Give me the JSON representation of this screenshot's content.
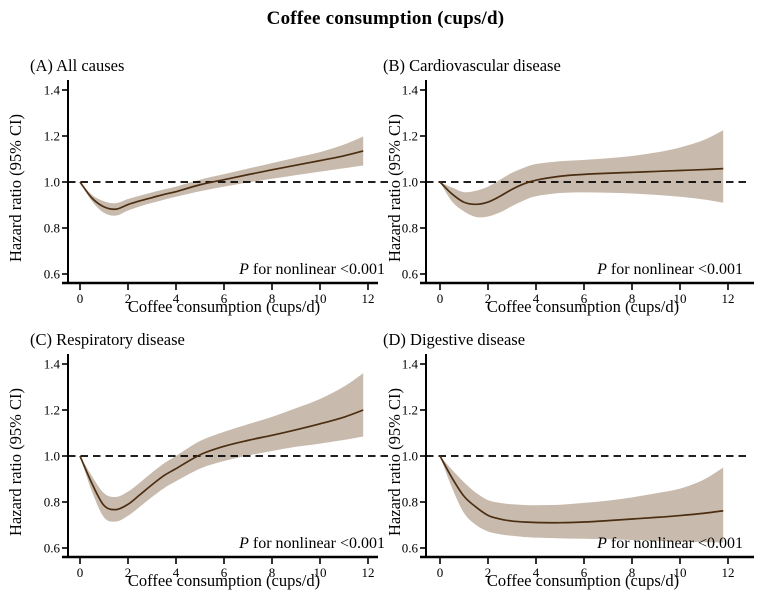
{
  "title": "Coffee consumption (cups/d)",
  "colors": {
    "band": "#c8bbad",
    "curve": "#4b2d12",
    "axis": "#000000",
    "reference_line": "#000000",
    "background": "#ffffff"
  },
  "p_note": {
    "italic": "P",
    "rest": " for nonlinear <0.001"
  },
  "chart_data": [
    {
      "type": "line",
      "label": "(A) All causes",
      "xlabel": "Coffee consumption (cups/d)",
      "ylabel": "Hazard ratio (95% CI)",
      "xlim": [
        0,
        12
      ],
      "ylim": [
        0.6,
        1.4
      ],
      "x_tick_labels": [
        "0",
        "2",
        "4",
        "6",
        "8",
        "10",
        "12"
      ],
      "x_tick_values": [
        0,
        2,
        4,
        6,
        8,
        10,
        12
      ],
      "y_tick_labels": [
        "0.6",
        "0.8",
        "1.0",
        "1.2",
        "1.4"
      ],
      "y_tick_values": [
        0.6,
        0.8,
        1.0,
        1.2,
        1.4
      ],
      "reference_line": 1.0,
      "p_text": "P for nonlinear <0.001",
      "x": [
        0,
        0.5,
        1,
        1.5,
        2,
        2.5,
        3,
        3.5,
        4,
        5,
        6,
        7,
        8,
        9,
        10,
        11,
        11.8
      ],
      "hazard_ratio": [
        1.0,
        0.93,
        0.892,
        0.882,
        0.902,
        0.918,
        0.932,
        0.946,
        0.958,
        0.988,
        1.01,
        1.032,
        1.053,
        1.073,
        1.093,
        1.114,
        1.135
      ],
      "ci_lower": [
        1.0,
        0.916,
        0.866,
        0.854,
        0.876,
        0.894,
        0.909,
        0.923,
        0.936,
        0.96,
        0.98,
        0.998,
        1.014,
        1.03,
        1.045,
        1.06,
        1.072
      ],
      "ci_upper": [
        1.0,
        0.944,
        0.916,
        0.908,
        0.926,
        0.941,
        0.955,
        0.968,
        0.98,
        1.01,
        1.034,
        1.058,
        1.082,
        1.106,
        1.13,
        1.163,
        1.198
      ]
    },
    {
      "type": "line",
      "label": "(B) Cardiovascular disease",
      "xlabel": "Coffee consumption (cups/d)",
      "ylabel": "Hazard ratio (95% CI)",
      "xlim": [
        0,
        12
      ],
      "ylim": [
        0.6,
        1.4
      ],
      "x_tick_labels": [
        "0",
        "2",
        "4",
        "6",
        "8",
        "10",
        "12"
      ],
      "x_tick_values": [
        0,
        2,
        4,
        6,
        8,
        10,
        12
      ],
      "y_tick_labels": [
        "0.6",
        "0.8",
        "1.0",
        "1.2",
        "1.4"
      ],
      "y_tick_values": [
        0.6,
        0.8,
        1.0,
        1.2,
        1.4
      ],
      "reference_line": 1.0,
      "p_text": "P for nonlinear <0.001",
      "x": [
        0,
        0.5,
        1,
        1.5,
        2,
        2.5,
        3,
        3.5,
        4,
        5,
        6,
        7,
        8,
        9,
        10,
        11,
        11.8
      ],
      "hazard_ratio": [
        1.0,
        0.948,
        0.912,
        0.903,
        0.913,
        0.938,
        0.968,
        0.992,
        1.008,
        1.025,
        1.033,
        1.038,
        1.042,
        1.046,
        1.05,
        1.054,
        1.058
      ],
      "ci_lower": [
        1.0,
        0.915,
        0.872,
        0.848,
        0.85,
        0.868,
        0.895,
        0.92,
        0.938,
        0.952,
        0.955,
        0.953,
        0.95,
        0.944,
        0.936,
        0.924,
        0.91
      ],
      "ci_upper": [
        1.0,
        0.976,
        0.956,
        0.962,
        0.98,
        1.01,
        1.04,
        1.062,
        1.078,
        1.09,
        1.096,
        1.103,
        1.113,
        1.128,
        1.15,
        1.183,
        1.225
      ]
    },
    {
      "type": "line",
      "label": "(C) Respiratory disease",
      "xlabel": "Coffee consumption (cups/d)",
      "ylabel": "Hazard ratio (95% CI)",
      "xlim": [
        0,
        12
      ],
      "ylim": [
        0.6,
        1.4
      ],
      "x_tick_labels": [
        "0",
        "2",
        "4",
        "6",
        "8",
        "10",
        "12"
      ],
      "x_tick_values": [
        0,
        2,
        4,
        6,
        8,
        10,
        12
      ],
      "y_tick_labels": [
        "0.6",
        "0.8",
        "1.0",
        "1.2",
        "1.4"
      ],
      "y_tick_values": [
        0.6,
        0.8,
        1.0,
        1.2,
        1.4
      ],
      "reference_line": 1.0,
      "p_text": "P for nonlinear <0.001",
      "x": [
        0,
        0.5,
        1,
        1.5,
        2,
        2.5,
        3,
        3.5,
        4,
        5,
        6,
        7,
        8,
        9,
        10,
        11,
        11.8
      ],
      "hazard_ratio": [
        1.0,
        0.88,
        0.785,
        0.767,
        0.79,
        0.832,
        0.875,
        0.915,
        0.945,
        1.005,
        1.042,
        1.068,
        1.09,
        1.114,
        1.14,
        1.169,
        1.2
      ],
      "ci_lower": [
        1.0,
        0.845,
        0.733,
        0.715,
        0.74,
        0.78,
        0.822,
        0.86,
        0.89,
        0.945,
        0.978,
        1.002,
        1.022,
        1.04,
        1.054,
        1.07,
        1.085
      ],
      "ci_upper": [
        1.0,
        0.912,
        0.838,
        0.822,
        0.845,
        0.885,
        0.928,
        0.968,
        1.0,
        1.065,
        1.105,
        1.138,
        1.17,
        1.208,
        1.248,
        1.302,
        1.36
      ]
    },
    {
      "type": "line",
      "label": "(D) Digestive disease",
      "xlabel": "Coffee consumption (cups/d)",
      "ylabel": "Hazard ratio (95% CI)",
      "xlim": [
        0,
        12
      ],
      "ylim": [
        0.6,
        1.4
      ],
      "x_tick_labels": [
        "0",
        "2",
        "4",
        "6",
        "8",
        "10",
        "12"
      ],
      "x_tick_values": [
        0,
        2,
        4,
        6,
        8,
        10,
        12
      ],
      "y_tick_labels": [
        "0.6",
        "0.8",
        "1.0",
        "1.2",
        "1.4"
      ],
      "y_tick_values": [
        0.6,
        0.8,
        1.0,
        1.2,
        1.4
      ],
      "reference_line": 1.0,
      "p_text": "P for nonlinear <0.001",
      "x": [
        0,
        0.5,
        1,
        1.5,
        2,
        2.5,
        3,
        3.5,
        4,
        5,
        6,
        7,
        8,
        9,
        10,
        11,
        11.8
      ],
      "hazard_ratio": [
        1.0,
        0.905,
        0.825,
        0.778,
        0.742,
        0.726,
        0.717,
        0.713,
        0.711,
        0.71,
        0.713,
        0.719,
        0.726,
        0.733,
        0.741,
        0.751,
        0.762
      ],
      "ci_lower": [
        1.0,
        0.862,
        0.752,
        0.7,
        0.672,
        0.66,
        0.653,
        0.648,
        0.645,
        0.642,
        0.64,
        0.638,
        0.635,
        0.631,
        0.627,
        0.625,
        0.624
      ],
      "ci_upper": [
        1.0,
        0.94,
        0.886,
        0.84,
        0.808,
        0.796,
        0.79,
        0.787,
        0.786,
        0.788,
        0.796,
        0.806,
        0.82,
        0.838,
        0.858,
        0.898,
        0.95
      ]
    }
  ]
}
